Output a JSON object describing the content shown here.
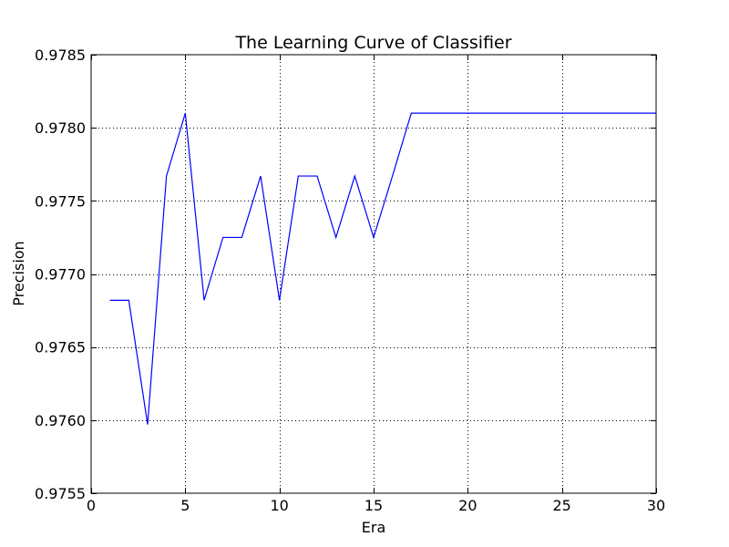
{
  "chart_data": {
    "type": "line",
    "title": "The Learning Curve of Classifier",
    "xlabel": "Era",
    "ylabel": "Precision",
    "xlim": [
      0,
      30
    ],
    "ylim": [
      0.9755,
      0.9785
    ],
    "x_ticks": [
      0,
      5,
      10,
      15,
      20,
      25,
      30
    ],
    "x_tick_labels": [
      "0",
      "5",
      "10",
      "15",
      "20",
      "25",
      "30"
    ],
    "y_ticks": [
      0.9755,
      0.976,
      0.9765,
      0.977,
      0.9775,
      0.978,
      0.9785
    ],
    "y_tick_labels": [
      "0.9755",
      "0.9760",
      "0.9765",
      "0.9770",
      "0.9775",
      "0.9780",
      "0.9785"
    ],
    "grid": true,
    "series": [
      {
        "color": "#0000ff",
        "x": [
          1,
          2,
          3,
          4,
          5,
          6,
          7,
          8,
          9,
          10,
          11,
          12,
          13,
          14,
          15,
          16,
          17,
          18,
          19,
          20,
          21,
          22,
          23,
          24,
          25,
          26,
          27,
          28,
          29,
          30
        ],
        "y": [
          0.97682,
          0.97682,
          0.97597,
          0.97767,
          0.9781,
          0.97682,
          0.97725,
          0.97725,
          0.97767,
          0.97682,
          0.97767,
          0.97767,
          0.97725,
          0.97767,
          0.97725,
          0.97767,
          0.9781,
          0.9781,
          0.9781,
          0.9781,
          0.9781,
          0.9781,
          0.9781,
          0.9781,
          0.9781,
          0.9781,
          0.9781,
          0.9781,
          0.9781,
          0.9781
        ]
      }
    ]
  }
}
